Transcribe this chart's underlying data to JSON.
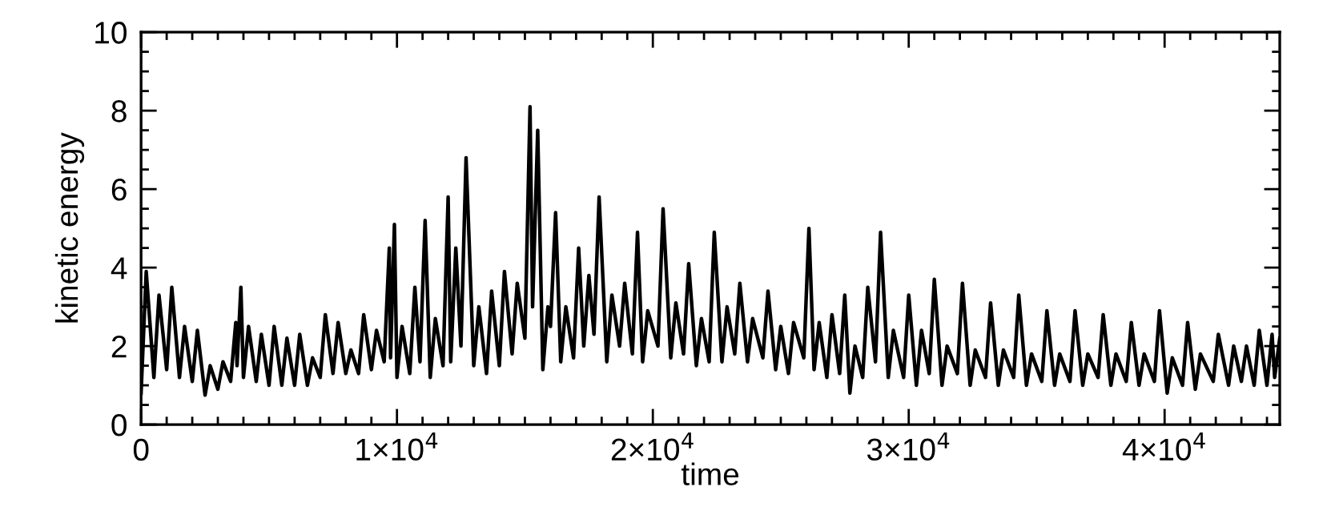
{
  "chart_data": {
    "type": "line",
    "xlabel": "time",
    "ylabel": "kinetic energy",
    "xlim": [
      0,
      44500
    ],
    "ylim": [
      0,
      10
    ],
    "xticks": [
      0,
      {
        "value": 1000,
        "label": null
      },
      {
        "value": 2000,
        "label": null
      },
      {
        "value": 3000,
        "label": null
      },
      {
        "value": 4000,
        "label": null
      },
      {
        "value": 5000,
        "label": null
      },
      {
        "value": 6000,
        "label": null
      },
      {
        "value": 7000,
        "label": null
      },
      {
        "value": 8000,
        "label": null
      },
      {
        "value": 9000,
        "label": null
      },
      {
        "value": 10000,
        "label": "1×10$^{4}$"
      },
      {
        "value": 11000,
        "label": null
      },
      {
        "value": 12000,
        "label": null
      },
      {
        "value": 13000,
        "label": null
      },
      {
        "value": 14000,
        "label": null
      },
      {
        "value": 15000,
        "label": null
      },
      {
        "value": 16000,
        "label": null
      },
      {
        "value": 17000,
        "label": null
      },
      {
        "value": 18000,
        "label": null
      },
      {
        "value": 19000,
        "label": null
      },
      {
        "value": 20000,
        "label": "2×10$^{4}$"
      },
      {
        "value": 21000,
        "label": null
      },
      {
        "value": 22000,
        "label": null
      },
      {
        "value": 23000,
        "label": null
      },
      {
        "value": 24000,
        "label": null
      },
      {
        "value": 25000,
        "label": null
      },
      {
        "value": 26000,
        "label": null
      },
      {
        "value": 27000,
        "label": null
      },
      {
        "value": 28000,
        "label": null
      },
      {
        "value": 29000,
        "label": null
      },
      {
        "value": 30000,
        "label": "3×10$^{4}$"
      },
      {
        "value": 31000,
        "label": null
      },
      {
        "value": 32000,
        "label": null
      },
      {
        "value": 33000,
        "label": null
      },
      {
        "value": 34000,
        "label": null
      },
      {
        "value": 35000,
        "label": null
      },
      {
        "value": 36000,
        "label": null
      },
      {
        "value": 37000,
        "label": null
      },
      {
        "value": 38000,
        "label": null
      },
      {
        "value": 39000,
        "label": null
      },
      {
        "value": 40000,
        "label": "4×10$^{4}$"
      },
      {
        "value": 41000,
        "label": null
      },
      {
        "value": 42000,
        "label": null
      },
      {
        "value": 43000,
        "label": null
      },
      {
        "value": 44000,
        "label": null
      }
    ],
    "yticks": [
      0,
      {
        "value": 0.5,
        "label": null
      },
      {
        "value": 1,
        "label": null
      },
      {
        "value": 1.5,
        "label": null
      },
      2,
      {
        "value": 2.5,
        "label": null
      },
      {
        "value": 3,
        "label": null
      },
      {
        "value": 3.5,
        "label": null
      },
      4,
      {
        "value": 4.5,
        "label": null
      },
      {
        "value": 5,
        "label": null
      },
      {
        "value": 5.5,
        "label": null
      },
      6,
      {
        "value": 6.5,
        "label": null
      },
      {
        "value": 7,
        "label": null
      },
      {
        "value": 7.5,
        "label": null
      },
      8,
      {
        "value": 8.5,
        "label": null
      },
      {
        "value": 9,
        "label": null
      },
      {
        "value": 9.5,
        "label": null
      },
      10
    ],
    "grid": false,
    "legend": false,
    "marker": "none",
    "line_style": "solid",
    "series": [
      {
        "color": "#000000",
        "x": [
          0,
          200,
          500,
          700,
          1000,
          1200,
          1500,
          1700,
          2000,
          2200,
          2500,
          2700,
          3000,
          3200,
          3500,
          3700,
          3750,
          3900,
          4000,
          4200,
          4500,
          4700,
          5000,
          5200,
          5500,
          5700,
          6000,
          6200,
          6500,
          6700,
          7000,
          7200,
          7500,
          7700,
          8000,
          8200,
          8500,
          8700,
          9000,
          9200,
          9500,
          9700,
          9750,
          9900,
          10000,
          10200,
          10500,
          10700,
          10900,
          11100,
          11300,
          11500,
          11800,
          12000,
          12100,
          12300,
          12500,
          12700,
          13000,
          13200,
          13500,
          13700,
          14000,
          14200,
          14500,
          14700,
          15000,
          15200,
          15300,
          15500,
          15700,
          15900,
          16000,
          16200,
          16400,
          16600,
          16900,
          17100,
          17300,
          17500,
          17700,
          17900,
          18200,
          18400,
          18700,
          18900,
          19200,
          19400,
          19600,
          19800,
          20200,
          20400,
          20700,
          20900,
          21200,
          21400,
          21700,
          21900,
          22200,
          22400,
          22700,
          22900,
          23200,
          23400,
          23700,
          23900,
          24300,
          24500,
          24800,
          25000,
          25300,
          25500,
          25900,
          26100,
          26300,
          26500,
          26800,
          27000,
          27300,
          27500,
          27700,
          27900,
          28200,
          28400,
          28700,
          28900,
          29200,
          29400,
          29800,
          30000,
          30300,
          30500,
          30800,
          31000,
          31300,
          31500,
          31900,
          32100,
          32400,
          32600,
          33000,
          33200,
          33500,
          33700,
          34100,
          34300,
          34600,
          34800,
          35200,
          35400,
          35700,
          35900,
          36300,
          36500,
          36800,
          37000,
          37400,
          37600,
          37900,
          38100,
          38500,
          38700,
          39000,
          39200,
          39600,
          39800,
          40100,
          40300,
          40700,
          40900,
          41200,
          41400,
          41900,
          42100,
          42500,
          42700,
          43000,
          43200,
          43500,
          43700,
          44000,
          44200,
          44300,
          44500
        ],
        "values": [
          0.8,
          3.9,
          1.2,
          3.3,
          1.4,
          3.5,
          1.2,
          2.5,
          1.1,
          2.4,
          0.75,
          1.5,
          0.9,
          1.6,
          1.1,
          2.6,
          1.5,
          3.5,
          1.2,
          2.5,
          1.1,
          2.3,
          1.0,
          2.5,
          1.0,
          2.2,
          1.0,
          2.3,
          1.0,
          1.7,
          1.2,
          2.8,
          1.3,
          2.6,
          1.3,
          1.9,
          1.3,
          2.8,
          1.4,
          2.4,
          1.6,
          4.5,
          1.7,
          5.1,
          1.2,
          2.5,
          1.3,
          3.5,
          1.6,
          5.2,
          1.2,
          2.7,
          1.5,
          5.8,
          1.6,
          4.5,
          2.0,
          6.8,
          1.5,
          3.0,
          1.3,
          3.4,
          1.5,
          3.9,
          1.8,
          3.6,
          2.2,
          8.1,
          3.0,
          7.5,
          1.4,
          3.0,
          2.5,
          5.4,
          1.6,
          3.0,
          1.7,
          4.5,
          2.0,
          3.8,
          2.3,
          5.8,
          1.6,
          3.3,
          2.0,
          3.6,
          1.8,
          4.9,
          1.6,
          2.9,
          2.0,
          5.5,
          1.7,
          3.1,
          1.8,
          4.1,
          1.5,
          2.7,
          1.6,
          4.9,
          1.6,
          3.0,
          1.8,
          3.6,
          1.6,
          2.7,
          1.7,
          3.4,
          1.4,
          2.5,
          1.3,
          2.6,
          1.7,
          5.0,
          1.4,
          2.6,
          1.2,
          2.8,
          1.3,
          3.3,
          0.8,
          2.0,
          1.2,
          3.5,
          1.6,
          4.9,
          1.2,
          2.4,
          1.2,
          3.3,
          1.0,
          2.4,
          1.3,
          3.7,
          1.0,
          2.0,
          1.3,
          3.6,
          1.0,
          1.9,
          1.2,
          3.1,
          1.0,
          1.9,
          1.2,
          3.3,
          1.0,
          1.8,
          1.1,
          2.9,
          1.0,
          1.8,
          1.1,
          2.9,
          1.0,
          1.8,
          1.2,
          2.8,
          1.0,
          1.8,
          1.1,
          2.6,
          1.0,
          1.8,
          1.1,
          2.9,
          0.8,
          1.7,
          1.0,
          2.6,
          0.9,
          1.8,
          1.1,
          2.3,
          1.0,
          2.0,
          1.1,
          2.0,
          1.0,
          2.4,
          1.0,
          2.3,
          1.2,
          2.2
        ]
      }
    ]
  }
}
